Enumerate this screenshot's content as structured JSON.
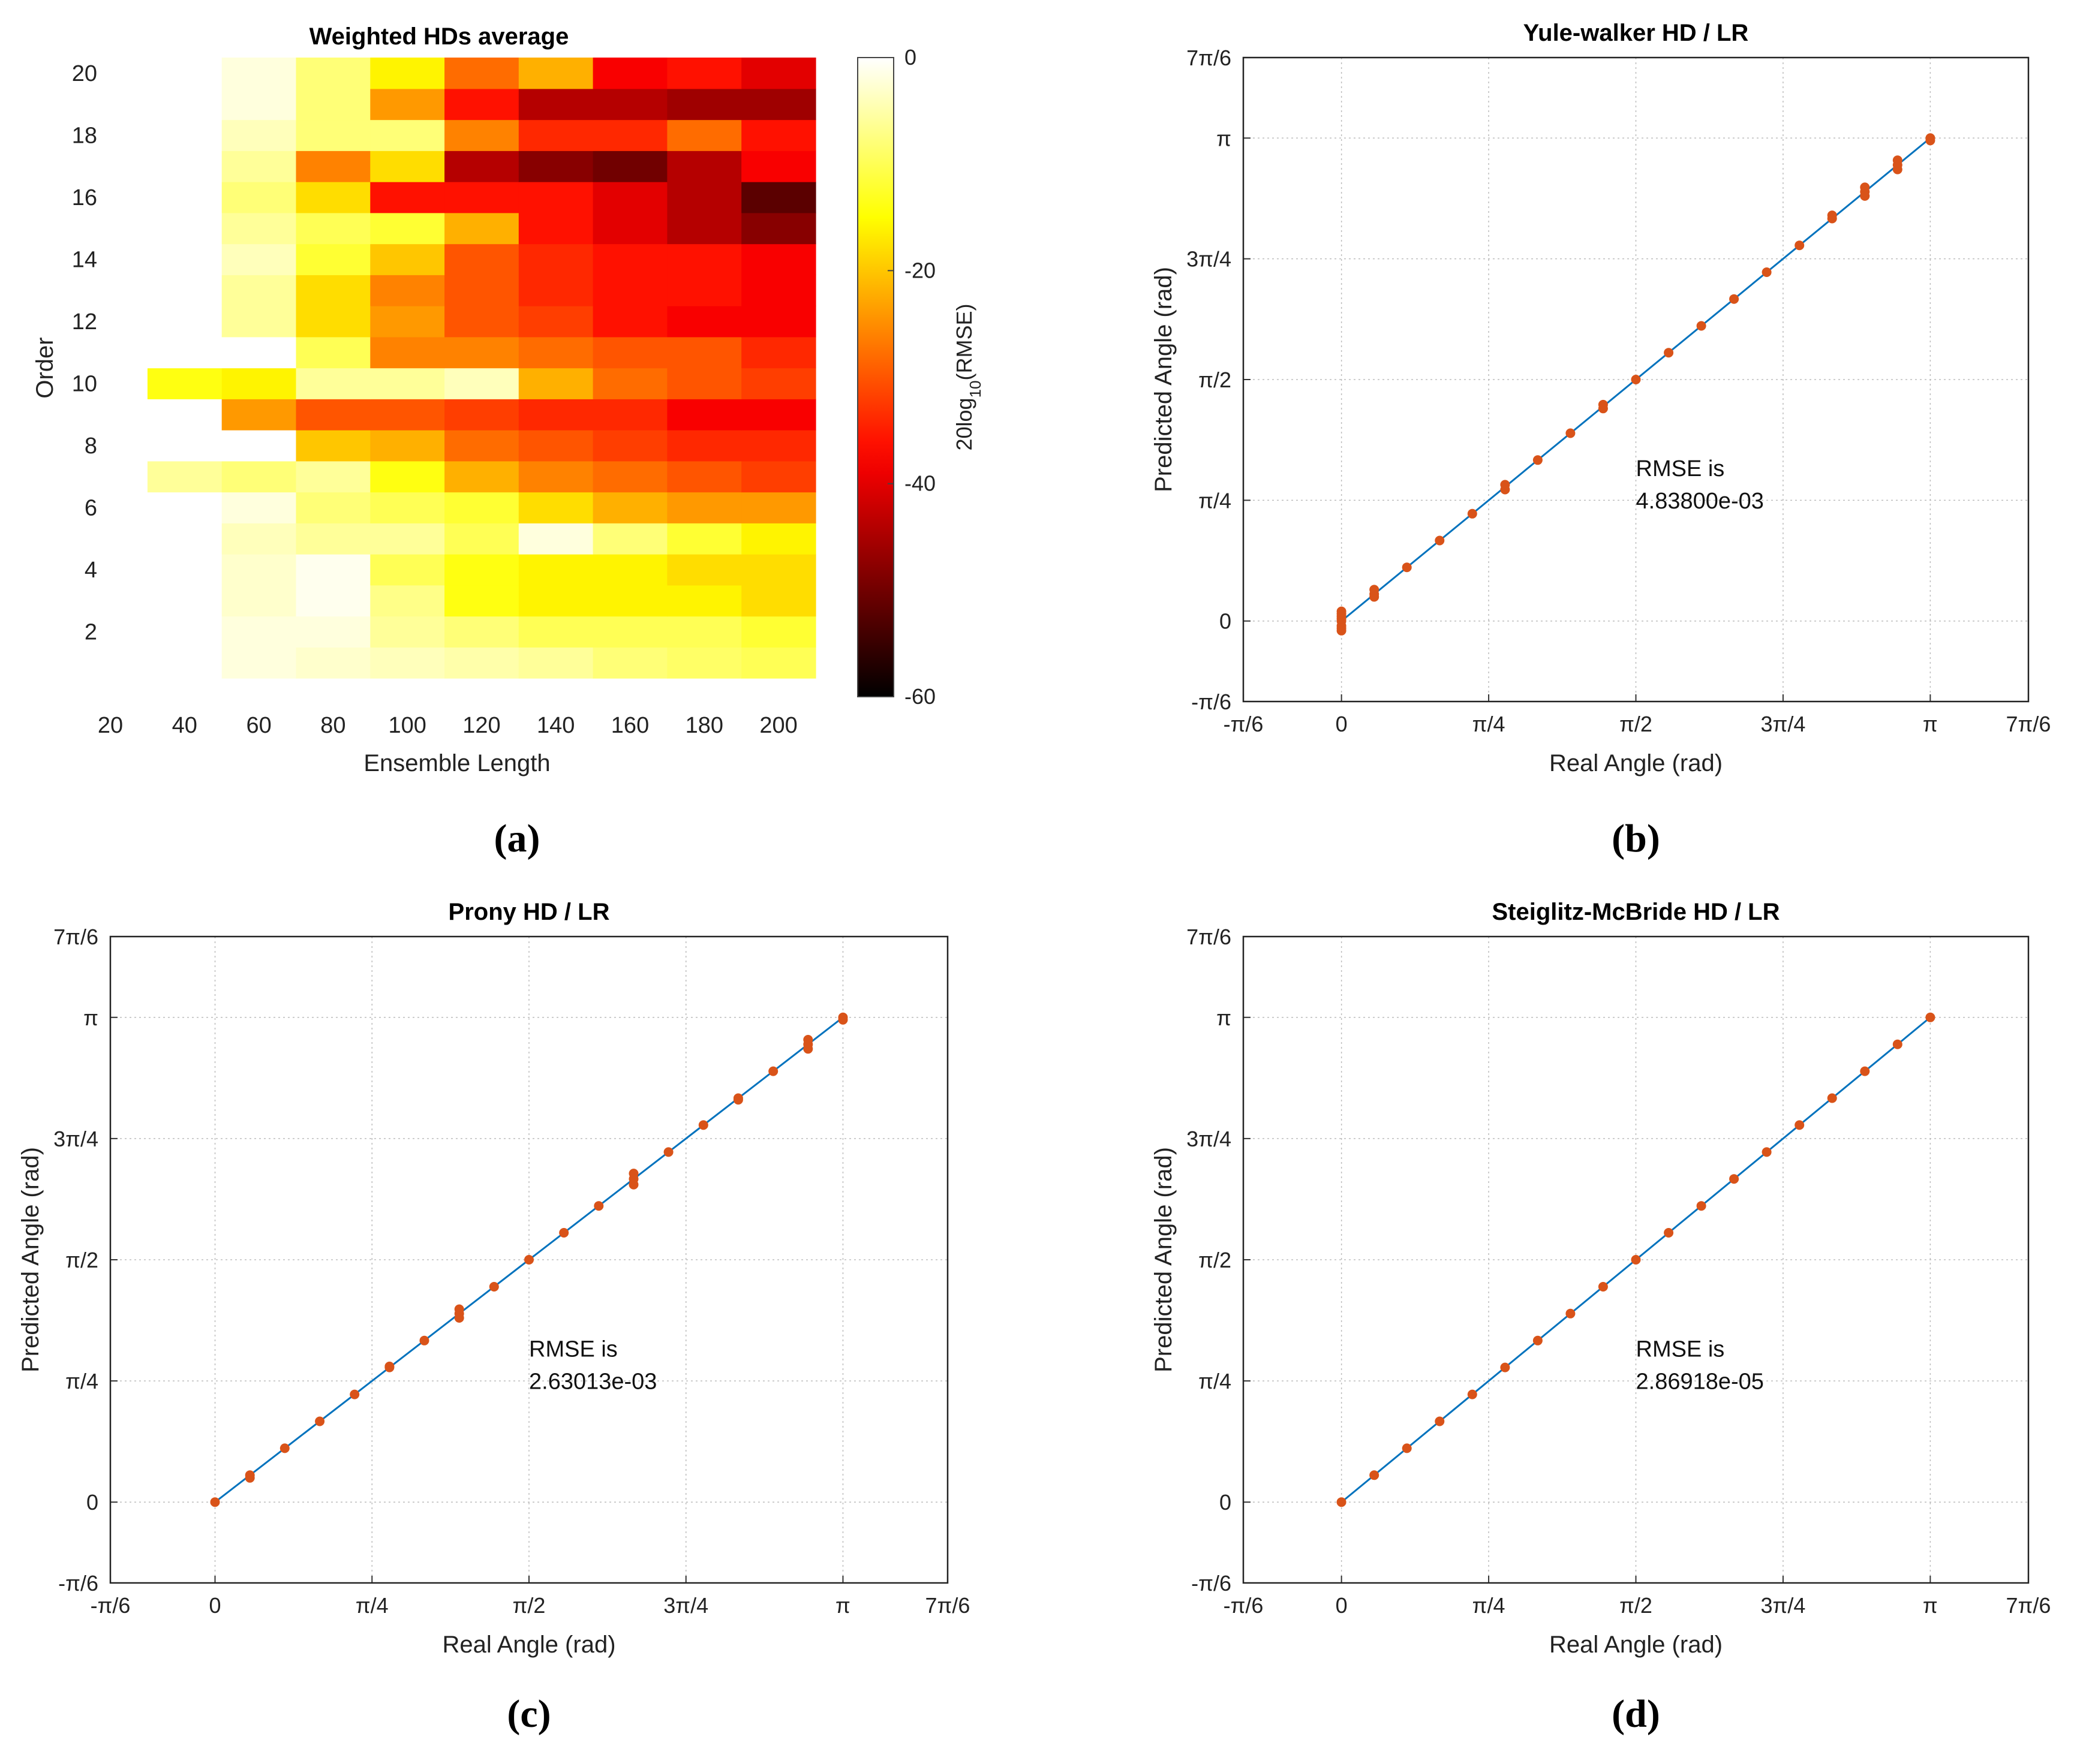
{
  "chart_data": [
    {
      "panel": "a",
      "caption": "(a)",
      "type": "heatmap",
      "title": "Weighted HDs average",
      "xlabel": "Ensemble Length",
      "ylabel": "Order",
      "xticks": [
        "20",
        "40",
        "60",
        "80",
        "100",
        "120",
        "140",
        "160",
        "180",
        "200"
      ],
      "yticks": [
        "2",
        "4",
        "6",
        "8",
        "10",
        "12",
        "14",
        "16",
        "18",
        "20"
      ],
      "x": [
        20,
        40,
        60,
        80,
        100,
        120,
        140,
        160,
        180,
        200
      ],
      "y": [
        1,
        2,
        3,
        4,
        5,
        6,
        7,
        8,
        9,
        10,
        11,
        12,
        13,
        14,
        15,
        16,
        17,
        18,
        19,
        20
      ],
      "colorbar": {
        "label": "20log10(RMSE)",
        "label_main": "20log",
        "label_sub": "10",
        "label_tail": "(RMSE)",
        "ticks": [
          "0",
          "-20",
          "-40",
          "-60"
        ],
        "range": [
          -60,
          0
        ],
        "colormap": "hot"
      },
      "values": [
        [
          0,
          0,
          -2,
          -3,
          -4,
          -5,
          -6,
          -8,
          -9,
          -10
        ],
        [
          0,
          0,
          -2,
          -2,
          -6,
          -8,
          -10,
          -10,
          -10,
          -12
        ],
        [
          0,
          0,
          -3,
          -1,
          -7,
          -14,
          -16,
          -16,
          -16,
          -18
        ],
        [
          0,
          0,
          -3,
          -1,
          -10,
          -14,
          -16,
          -16,
          -18,
          -18
        ],
        [
          0,
          0,
          -4,
          -6,
          -6,
          -10,
          -2,
          -8,
          -12,
          -16
        ],
        [
          0,
          0,
          -2,
          -8,
          -10,
          -12,
          -18,
          -22,
          -24,
          -24
        ],
        [
          0,
          -6,
          -8,
          -6,
          -14,
          -22,
          -26,
          -28,
          -30,
          -32
        ],
        [
          0,
          0,
          0,
          -20,
          -22,
          -28,
          -30,
          -32,
          -34,
          -34
        ],
        [
          0,
          0,
          -24,
          -30,
          -30,
          -32,
          -34,
          -34,
          -38,
          -38
        ],
        [
          0,
          -14,
          -16,
          -6,
          -6,
          -4,
          -22,
          -28,
          -30,
          -32
        ],
        [
          0,
          0,
          0,
          -10,
          -26,
          -26,
          -28,
          -30,
          -30,
          -34
        ],
        [
          0,
          0,
          -6,
          -18,
          -24,
          -30,
          -32,
          -36,
          -38,
          -38
        ],
        [
          0,
          0,
          -6,
          -18,
          -26,
          -30,
          -34,
          -36,
          -36,
          -38
        ],
        [
          0,
          0,
          -4,
          -12,
          -20,
          -30,
          -34,
          -36,
          -36,
          -38
        ],
        [
          0,
          0,
          -6,
          -10,
          -12,
          -22,
          -36,
          -40,
          -44,
          -48
        ],
        [
          0,
          0,
          -8,
          -18,
          -36,
          -36,
          -36,
          -40,
          -44,
          -52
        ],
        [
          0,
          0,
          -6,
          -26,
          -18,
          -44,
          -48,
          -50,
          -44,
          -38
        ],
        [
          0,
          0,
          -4,
          -8,
          -8,
          -26,
          -34,
          -34,
          -28,
          -36
        ],
        [
          0,
          0,
          -2,
          -8,
          -24,
          -36,
          -44,
          -44,
          -46,
          -46
        ],
        [
          0,
          0,
          -2,
          -8,
          -16,
          -28,
          -22,
          -38,
          -36,
          -40
        ]
      ]
    },
    {
      "panel": "b",
      "caption": "(b)",
      "type": "scatter",
      "title": "Yule-walker HD / LR",
      "xlabel": "Real Angle (rad)",
      "ylabel": "Predicted Angle (rad)",
      "xlim_pi": [
        -0.1667,
        1.1667
      ],
      "ylim_pi": [
        -0.1667,
        1.1667
      ],
      "xticks": [
        "-π/6",
        "0",
        "π/4",
        "π/2",
        "3π/4",
        "π",
        "7π/6"
      ],
      "yticks": [
        "-π/6",
        "0",
        "π/4",
        "π/2",
        "3π/4",
        "π",
        "7π/6"
      ],
      "grid": true,
      "annotation": [
        "RMSE is",
        "4.83800e-03"
      ],
      "annotation_at_pi": [
        0.5,
        0.3
      ],
      "series": [
        {
          "kind": "line",
          "color": "#0072BD",
          "x_pi": [
            0,
            1
          ],
          "y_pi": [
            0,
            1
          ]
        },
        {
          "kind": "points",
          "color": "#D95319",
          "x_pi": [
            0,
            0,
            0,
            0,
            0,
            0,
            0,
            0,
            0.0556,
            0.0556,
            0.0556,
            0.1111,
            0.1667,
            0.2222,
            0.2778,
            0.2778,
            0.3333,
            0.3889,
            0.4444,
            0.4444,
            0.5,
            0.5556,
            0.6111,
            0.6667,
            0.7222,
            0.7778,
            0.8333,
            0.8333,
            0.8889,
            0.8889,
            0.8889,
            0.9444,
            0.9444,
            0.9444,
            1,
            1
          ],
          "y_pi": [
            -0.02,
            -0.01,
            0,
            0.005,
            0.01,
            0.015,
            0.02,
            -0.015,
            0.05,
            0.0556,
            0.065,
            0.1111,
            0.1667,
            0.2222,
            0.2722,
            0.2822,
            0.3333,
            0.3889,
            0.44,
            0.448,
            0.5,
            0.5556,
            0.6111,
            0.6667,
            0.7222,
            0.7778,
            0.8333,
            0.84,
            0.88,
            0.8889,
            0.898,
            0.935,
            0.9444,
            0.954,
            0.995,
            1.0
          ]
        }
      ]
    },
    {
      "panel": "c",
      "caption": "(c)",
      "type": "scatter",
      "title": "Prony HD / LR",
      "xlabel": "Real Angle (rad)",
      "ylabel": "Predicted Angle (rad)",
      "xlim_pi": [
        -0.1667,
        1.1667
      ],
      "ylim_pi": [
        -0.1667,
        1.1667
      ],
      "xticks": [
        "-π/6",
        "0",
        "π/4",
        "π/2",
        "3π/4",
        "π",
        "7π/6"
      ],
      "yticks": [
        "-π/6",
        "0",
        "π/4",
        "π/2",
        "3π/4",
        "π",
        "7π/6"
      ],
      "grid": true,
      "annotation": [
        "RMSE is",
        "2.63013e-03"
      ],
      "annotation_at_pi": [
        0.5,
        0.3
      ],
      "series": [
        {
          "kind": "line",
          "color": "#0072BD",
          "x_pi": [
            0,
            1
          ],
          "y_pi": [
            0,
            1
          ]
        },
        {
          "kind": "points",
          "color": "#D95319",
          "x_pi": [
            0,
            0.0556,
            0.0556,
            0.1111,
            0.1667,
            0.2222,
            0.2778,
            0.2778,
            0.3333,
            0.3889,
            0.3889,
            0.3889,
            0.4444,
            0.5,
            0.5556,
            0.6111,
            0.6667,
            0.6667,
            0.6667,
            0.7222,
            0.7778,
            0.8333,
            0.8333,
            0.8889,
            0.9444,
            0.9444,
            0.9444,
            1,
            1
          ],
          "y_pi": [
            0,
            0.05,
            0.0556,
            0.1111,
            0.1667,
            0.2222,
            0.2778,
            0.28,
            0.3333,
            0.38,
            0.3889,
            0.398,
            0.4444,
            0.5,
            0.5556,
            0.6111,
            0.655,
            0.6667,
            0.678,
            0.7222,
            0.7778,
            0.83,
            0.8333,
            0.8889,
            0.935,
            0.9444,
            0.954,
            0.995,
            1.0
          ]
        }
      ]
    },
    {
      "panel": "d",
      "caption": "(d)",
      "type": "scatter",
      "title": "Steiglitz-McBride HD / LR",
      "xlabel": "Real Angle (rad)",
      "ylabel": "Predicted Angle (rad)",
      "xlim_pi": [
        -0.1667,
        1.1667
      ],
      "ylim_pi": [
        -0.1667,
        1.1667
      ],
      "xticks": [
        "-π/6",
        "0",
        "π/4",
        "π/2",
        "3π/4",
        "π",
        "7π/6"
      ],
      "yticks": [
        "-π/6",
        "0",
        "π/4",
        "π/2",
        "3π/4",
        "π",
        "7π/6"
      ],
      "grid": true,
      "annotation": [
        "RMSE is",
        "2.86918e-05"
      ],
      "annotation_at_pi": [
        0.5,
        0.3
      ],
      "series": [
        {
          "kind": "line",
          "color": "#0072BD",
          "x_pi": [
            0,
            1
          ],
          "y_pi": [
            0,
            1
          ]
        },
        {
          "kind": "points",
          "color": "#D95319",
          "x_pi": [
            0,
            0.0556,
            0.1111,
            0.1667,
            0.2222,
            0.2778,
            0.3333,
            0.3889,
            0.4444,
            0.5,
            0.5556,
            0.6111,
            0.6667,
            0.7222,
            0.7778,
            0.8333,
            0.8889,
            0.9444,
            1
          ],
          "y_pi": [
            0,
            0.0556,
            0.1111,
            0.1667,
            0.2222,
            0.2778,
            0.3333,
            0.3889,
            0.4444,
            0.5,
            0.5556,
            0.6111,
            0.6667,
            0.7222,
            0.7778,
            0.8333,
            0.8889,
            0.9444,
            1
          ]
        }
      ]
    }
  ]
}
